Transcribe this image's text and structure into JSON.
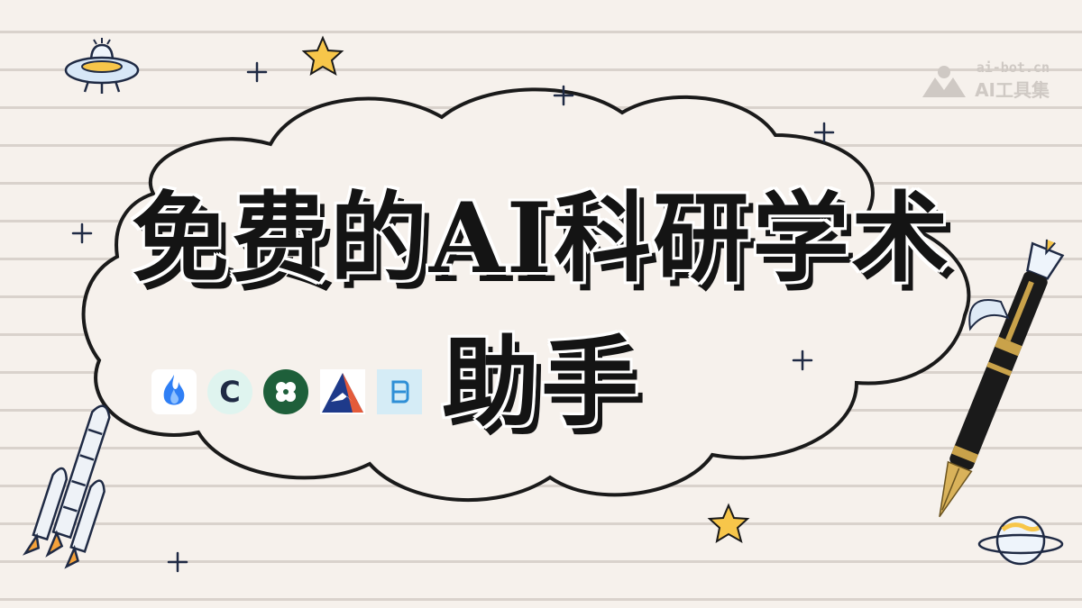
{
  "title": {
    "line1": "免费的AI科研学术",
    "line2": "助手"
  },
  "watermark": {
    "url": "ai-bot.cn",
    "name": "AI工具集"
  },
  "logos": [
    {
      "icon": "flame-logo-icon",
      "letter": ""
    },
    {
      "icon": "c-chat-logo-icon",
      "letter": "C"
    },
    {
      "icon": "green-clover-logo-icon",
      "letter": ""
    },
    {
      "icon": "mountain-a-logo-icon",
      "letter": ""
    },
    {
      "icon": "bracket-b-logo-icon",
      "letter": ""
    }
  ],
  "colors": {
    "background": "#f6f1ec",
    "ink": "#141414",
    "star": "#f7c64a",
    "logo_green": "#1e5f3a",
    "logo_navy": "#1e3a8a"
  }
}
